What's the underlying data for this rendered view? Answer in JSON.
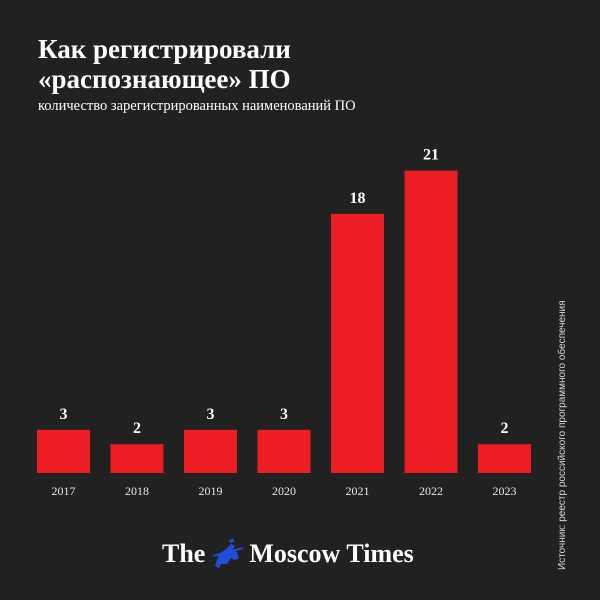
{
  "chart_data": {
    "type": "bar",
    "title": "Как регистрировали «распознающее» ПО",
    "subtitle": "количество зарегистрированных наименований ПО",
    "categories": [
      "2017",
      "2018",
      "2019",
      "2020",
      "2021",
      "2022",
      "2023"
    ],
    "values": [
      3,
      2,
      3,
      3,
      18,
      21,
      2
    ],
    "ylim": [
      0,
      21
    ],
    "grid": false,
    "bar_color": "#ec1d24",
    "source": "Источник: реестр российского программного обеспечения"
  },
  "brand": {
    "left": "The",
    "right": "Moscow Times",
    "emblem": "st-george-emblem-icon",
    "emblem_color": "#1f4fd6"
  },
  "colors": {
    "background": "#212121",
    "text": "#ffffff"
  }
}
